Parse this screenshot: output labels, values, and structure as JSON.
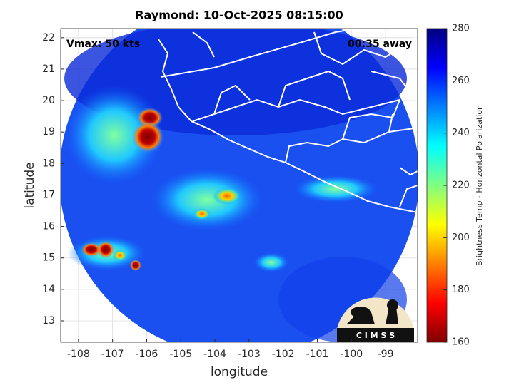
{
  "chart_data": {
    "type": "map",
    "title": "Raymond: 10-Oct-2025 08:15:00",
    "annotations": [
      "Vmax: 50 kts",
      "00:35 away"
    ],
    "xlabel": "longitude",
    "ylabel": "latitude",
    "xlim": [
      -108.52,
      -98.06
    ],
    "ylim": [
      12.32,
      22.29
    ],
    "xticks": [
      -108,
      -107,
      -106,
      -105,
      -104,
      -103,
      -102,
      -101,
      -100,
      -99
    ],
    "yticks": [
      13,
      14,
      15,
      16,
      17,
      18,
      19,
      20,
      21,
      22
    ],
    "grid": true,
    "colorbar": {
      "label": "Brightness Temp - Horizontal Polarization",
      "lim": [
        160,
        280
      ],
      "ticks": [
        160,
        180,
        200,
        220,
        240,
        260,
        280
      ],
      "colors": [
        "#800000",
        "#ff0000",
        "#ff8000",
        "#ffff00",
        "#80ff80",
        "#00ffff",
        "#0080ff",
        "#0000ff",
        "#000080"
      ]
    },
    "logo": "C I M S S"
  }
}
